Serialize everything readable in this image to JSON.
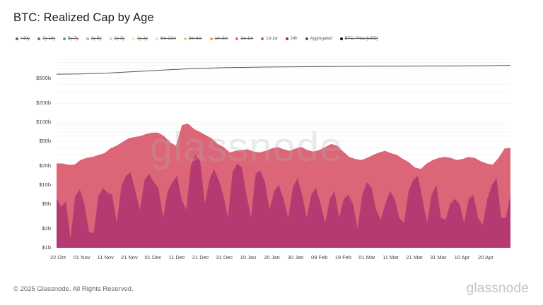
{
  "title": "BTC: Realized Cap by Age",
  "legend": [
    {
      "label": ">10y",
      "color": "#5b5ea6",
      "active": false
    },
    {
      "label": "7y-10y",
      "color": "#3f7fb5",
      "active": false
    },
    {
      "label": "5y-7y",
      "color": "#3aa8a8",
      "active": false
    },
    {
      "label": "3y-5y",
      "color": "#8fcf9a",
      "active": false
    },
    {
      "label": "2y-3y",
      "color": "#c5e08e",
      "active": false
    },
    {
      "label": "1y-2y",
      "color": "#f1f0a8",
      "active": false
    },
    {
      "label": "6m-12m",
      "color": "#f7dca0",
      "active": false
    },
    {
      "label": "3m-6m",
      "color": "#f5c77e",
      "active": false
    },
    {
      "label": "1m-3m",
      "color": "#ef9c62",
      "active": false
    },
    {
      "label": "1w-1m",
      "color": "#e8705a",
      "active": false
    },
    {
      "label": "1d-1w",
      "color": "#d9556a",
      "active": true
    },
    {
      "label": "24h",
      "color": "#a8225e",
      "active": true
    },
    {
      "label": "Aggregated",
      "color": "#555555",
      "active": true
    },
    {
      "label": "BTC: Price [USD]",
      "color": "#111111",
      "active": false
    }
  ],
  "colors": {
    "area_1d_1w": "#dc6577",
    "area_24h": "#b53a72",
    "aggregated_line": "#555555",
    "grid": "#eeeeee"
  },
  "watermark": "glassnode",
  "footer": {
    "copyright": "© 2025 Glassnode. All Rights Reserved.",
    "logo": "glassnode"
  },
  "chart_data": {
    "type": "area",
    "title": "BTC: Realized Cap by Age",
    "xlabel": "",
    "ylabel": "",
    "yscale": "log",
    "ylim": [
      1,
      900
    ],
    "grid": true,
    "legend_position": "top",
    "y_ticks": [
      {
        "label": "$1b",
        "value": 1
      },
      {
        "label": "$2b",
        "value": 2
      },
      {
        "label": "$5b",
        "value": 5
      },
      {
        "label": "$10b",
        "value": 10
      },
      {
        "label": "$20b",
        "value": 20
      },
      {
        "label": "$50b",
        "value": 50
      },
      {
        "label": "$100b",
        "value": 100
      },
      {
        "label": "$200b",
        "value": 200
      },
      {
        "label": "$500b",
        "value": 500
      }
    ],
    "x_ticks": [
      "22 Oct",
      "01 Nov",
      "11 Nov",
      "21 Nov",
      "01 Dec",
      "11 Dec",
      "21 Dec",
      "31 Dec",
      "10 Jan",
      "20 Jan",
      "30 Jan",
      "09 Feb",
      "19 Feb",
      "01 Mar",
      "11 Mar",
      "21 Mar",
      "31 Mar",
      "10 Apr",
      "20 Apr"
    ],
    "x_range_days": 191,
    "series": [
      {
        "name": "Aggregated",
        "unit": "USD billions",
        "sampling_days": 10,
        "values": [
          580,
          585,
          600,
          630,
          660,
          690,
          720,
          735,
          745,
          755,
          760,
          765,
          770,
          775,
          778,
          780,
          782,
          785,
          790,
          800
        ]
      },
      {
        "name": "1d-1w",
        "unit": "USD billions",
        "sampling_days": 3,
        "values": [
          22,
          22,
          21,
          21,
          25,
          27,
          28,
          30,
          32,
          38,
          42,
          48,
          55,
          58,
          60,
          65,
          68,
          68,
          60,
          48,
          42,
          90,
          95,
          78,
          70,
          62,
          55,
          45,
          40,
          33,
          35,
          36,
          37,
          34,
          33,
          35,
          38,
          40,
          37,
          35,
          38,
          40,
          36,
          34,
          36,
          40,
          45,
          42,
          34,
          28,
          26,
          25,
          27,
          30,
          33,
          35,
          32,
          30,
          26,
          23,
          19,
          18,
          22,
          25,
          27,
          28,
          27,
          25,
          26,
          28,
          27,
          24,
          22,
          21,
          27,
          38,
          39
        ]
      },
      {
        "name": "24h",
        "unit": "USD billions",
        "sampling_days": 2.5,
        "values": [
          6.0,
          4.5,
          5.5,
          1.4,
          6.5,
          8.5,
          5.0,
          1.8,
          1.7,
          6.5,
          9.0,
          7.5,
          7.0,
          2.5,
          9.5,
          14,
          16,
          8,
          4,
          12,
          15,
          11,
          9,
          3,
          8,
          11,
          14,
          6,
          4,
          20,
          30,
          24,
          5,
          12,
          18,
          12,
          7,
          3,
          16,
          22,
          19,
          7,
          3,
          15,
          17,
          11,
          4,
          8,
          10,
          6,
          3,
          9,
          13,
          7,
          3,
          7,
          9,
          5,
          2.5,
          6,
          8,
          3,
          6,
          7,
          5,
          2.0,
          7,
          11,
          9,
          4,
          2.8,
          5,
          8,
          6,
          3,
          2.5,
          8,
          12,
          14,
          6,
          2.5,
          7,
          10,
          3,
          2.8,
          5,
          6,
          5,
          2.5,
          6,
          7,
          3,
          2.3,
          6,
          10,
          13,
          3,
          3,
          7
        ]
      }
    ]
  }
}
